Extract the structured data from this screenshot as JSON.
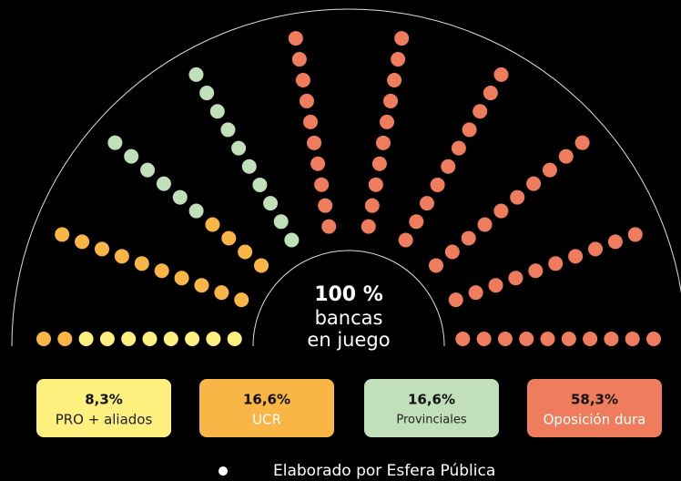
{
  "center": {
    "percent": "100 %",
    "line1": "bancas",
    "line2": "en juego"
  },
  "parties": [
    {
      "percent": "8,3%",
      "name": "PRO + aliados",
      "color": "#fdf07e"
    },
    {
      "percent": "16,6%",
      "name": "UCR",
      "color": "#f9b545"
    },
    {
      "percent": "16,6%",
      "name": "Provinciales",
      "color": "#c1dfb9"
    },
    {
      "percent": "58,3%",
      "name": "Oposición dura",
      "color": "#ef7c5c"
    }
  ],
  "footer": {
    "bullet": "●",
    "text": "Elaborado por Esfera Pública"
  }
}
